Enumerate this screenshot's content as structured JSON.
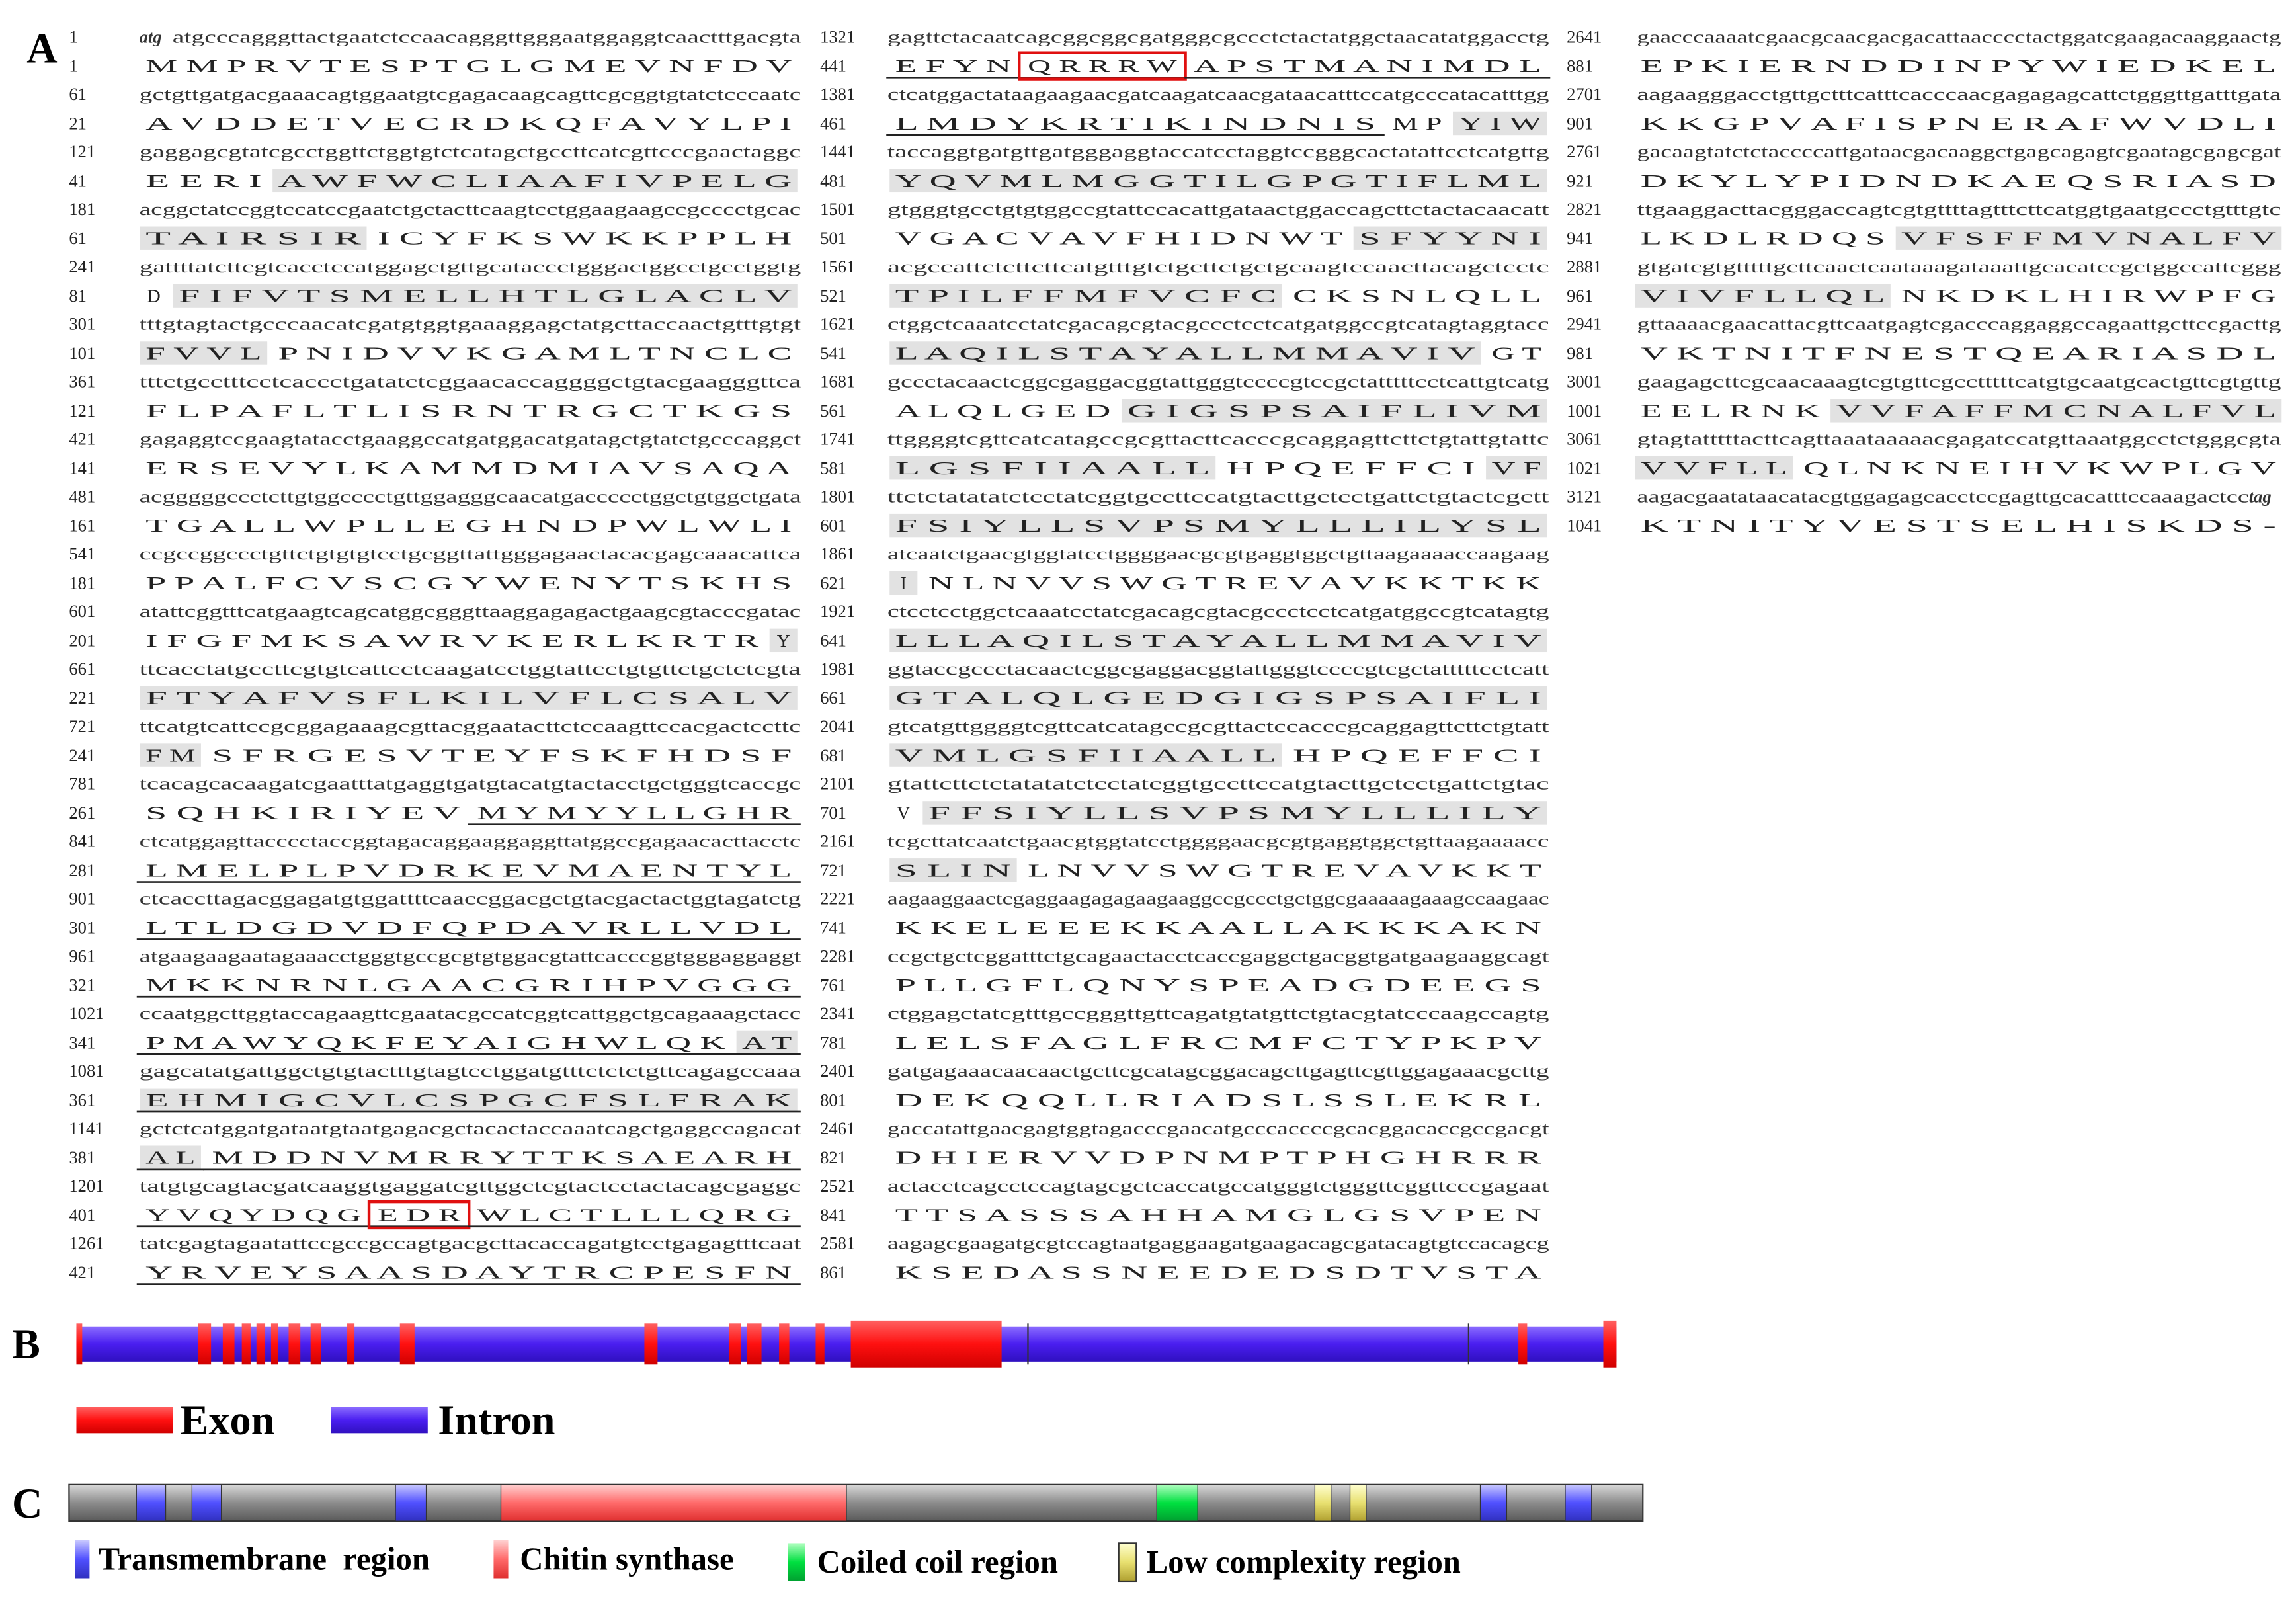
{
  "panel_a": {
    "label": "A",
    "columns": [
      [
        {
          "nt_num": "1",
          "start": "atg",
          "nt": "atgcccagggttactgaatctccaacagggttgggaatggaggtcaactttgacgta",
          "aa_num": "1",
          "aa": [
            "M M P R V T E S P T G L G M E V N F D V"
          ]
        },
        {
          "nt_num": "61",
          "nt": "gctgttgatgacgaaacagtggaatgtcgagacaagcagttcgcggtgtatctcccaatc",
          "aa_num": "21",
          "aa": [
            "A V D D E T V E C R D K Q F A V Y L P I"
          ]
        },
        {
          "nt_num": "121",
          "nt": "gaggagcgtatcgcctggttctggtgtctcatagctgccttcatcgttcccgaactaggc",
          "aa_num": "41",
          "aa": [
            "E E R I",
            {
              "text": "A W F W C L I A A F I V P E L G",
              "style": "shade"
            }
          ]
        },
        {
          "nt_num": "181",
          "nt": "acggctatccggtccatccgaatctgctacttcaagtcctggaagaagccgcccctgcac",
          "aa_num": "61",
          "aa": [
            {
              "text": "T A I R S I R",
              "style": "shade"
            },
            "I C Y F K S W K K P P L H"
          ]
        },
        {
          "nt_num": "241",
          "nt": "gattttatcttcgtcacctccatggagctgttgcataccctgggactggcctgcctggtg",
          "aa_num": "81",
          "aa": [
            "D",
            {
              "text": "F I F V T S M E L L H T L G L A C L V",
              "style": "shade"
            }
          ]
        },
        {
          "nt_num": "301",
          "nt": "tttgtagtactgcccaacatcgatgtggtgaaaggagctatgcttaccaactgtttgtgt",
          "aa_num": "101",
          "aa": [
            {
              "text": "F V V L",
              "style": "shade"
            },
            "P N I D V V K G A M L T N C L C"
          ]
        },
        {
          "nt_num": "361",
          "nt": "tttctgcctttcctcaccctgatatctcggaacaccaggggctgtacgaagggttca",
          "aa_num": "121",
          "aa": [
            "F L P A F L T L I S R N T R G C T K G S"
          ]
        },
        {
          "nt_num": "421",
          "nt": "gagaggtccgaagtatacctgaaggccatgatggacatgatagctgtatctgcccaggct",
          "aa_num": "141",
          "aa": [
            "E R S E V Y L K A M M D M I A V S A Q A"
          ]
        },
        {
          "nt_num": "481",
          "nt": "acgggggccctcttgtggcccctgttggagggcaacatgaccccctggctgtggctgata",
          "aa_num": "161",
          "aa": [
            "T G A L L W P L L E G H N D P W L W L I"
          ]
        },
        {
          "nt_num": "541",
          "nt": "ccgccggccctgttctgtgtgtcctgcggttattgggagaactacacgagcaaacattca",
          "aa_num": "181",
          "aa": [
            "P P A L F C V S C G Y W E N Y T S K H S"
          ]
        },
        {
          "nt_num": "601",
          "nt": "atattcggtttcatgaagtcagcatggcgggttaaggagagactgaagcgtacccgatac",
          "aa_num": "201",
          "aa": [
            "I F G F M K S A W R V K E R L K R T R",
            {
              "text": "Y",
              "style": "shade"
            }
          ]
        },
        {
          "nt_num": "661",
          "nt": "ttcacctatgccttcgtgtcattcctcaagatcctggtattcctgtgttctgctctcgta",
          "aa_num": "221",
          "aa": [
            {
              "text": "F T Y A F V S F L K I L V F L C S A L V",
              "style": "shade"
            }
          ]
        },
        {
          "nt_num": "721",
          "nt": "ttcatgtcattccgcggagaaagcgttacggaatacttctccaagttccacgactccttc",
          "aa_num": "241",
          "aa": [
            {
              "text": "F M",
              "style": "shade"
            },
            "S F R G E S V T E Y F S K F H D S F"
          ]
        },
        {
          "nt_num": "781",
          "nt": "tcacagcacaagatcgaatttatgaggtgatgtacatgtactacctgctgggtcaccgc",
          "aa_num": "261",
          "aa": [
            "S Q H K I R I Y E V",
            {
              "text": "M Y M Y Y L L G H R",
              "style": "under"
            }
          ]
        },
        {
          "nt_num": "841",
          "nt": "ctcatggagttacccctaccggtagacaggaaggaggttatggccgagaacacttacctc",
          "aa_num": "281",
          "aa": [
            {
              "text": "L M E L P L P V D R K E V M A E N T Y L",
              "style": "under"
            }
          ]
        },
        {
          "nt_num": "901",
          "nt": "ctcaccttagacggagatgtggattttcaaccggacgctgtacgactactggtagatctg",
          "aa_num": "301",
          "aa": [
            {
              "text": "L T L D G D V D F Q P D A V R L L V D L",
              "style": "under"
            }
          ]
        },
        {
          "nt_num": "961",
          "nt": "atgaagaagaatagaaacctgggtgccgcgtgtggacgtattcacccggtgggaggaggt",
          "aa_num": "321",
          "aa": [
            {
              "text": "M K K N R N L G A A C G R I H P V G G G",
              "style": "under"
            }
          ]
        },
        {
          "nt_num": "1021",
          "nt": "ccaatggcttggtaccagaagttcgaatacgccatcggtcattggctgcagaaagctacc",
          "aa_num": "341",
          "aa": [
            {
              "text": "P M A W Y Q K F E Y A I G H W L Q K",
              "style": "under"
            },
            {
              "text": "A T",
              "style": "under shade"
            }
          ]
        },
        {
          "nt_num": "1081",
          "nt": "gagcatatgattggctgtgtactttgtagtcctggatgtttctctctgttcagagccaaa",
          "aa_num": "361",
          "aa": [
            {
              "text": "E H M I G C V L C S P G C F S L F R A K",
              "style": "under shade"
            }
          ]
        },
        {
          "nt_num": "1141",
          "nt": "gctctcatggatgataatgtaatgagacgctacactaccaaatcagctgaggccagacat",
          "aa_num": "381",
          "aa": [
            {
              "text": "A L",
              "style": "under shade"
            },
            {
              "text": "M D D N V M R R Y T T K S A E A R H",
              "style": "under"
            }
          ]
        },
        {
          "nt_num": "1201",
          "nt": "tatgtgcagtacgatcaaggtgaggatcgttggctcgtactcctactacagcgaggc",
          "aa_num": "401",
          "aa": [
            {
              "text": "Y V Q Y D Q G",
              "style": "under"
            },
            {
              "text": "E D R",
              "style": "under box"
            },
            {
              "text": "W L C T L L L Q R G",
              "style": "under"
            }
          ]
        },
        {
          "nt_num": "1261",
          "nt": "tatcgagtagaatattccgccgccagtgacgcttacaccagatgtcctgagagtttcaat",
          "aa_num": "421",
          "aa": [
            {
              "text": "Y R V E Y S A A S D A Y T R C P E S F N",
              "style": "under"
            }
          ]
        }
      ],
      [
        {
          "nt_num": "1321",
          "nt": "gagttctacaatcagcggcggcgatgggcgccctctactatggctaacatatggacctg",
          "aa_num": "441",
          "aa": [
            {
              "text": "E F Y N",
              "style": "under"
            },
            {
              "text": "Q R R R W",
              "style": "under box"
            },
            {
              "text": "A P S T M A N I M D L",
              "style": "under"
            }
          ]
        },
        {
          "nt_num": "1381",
          "nt": "ctcatggactataagaagaacgatcaagatcaacgataacatttccatgcccatacatttgg",
          "aa_num": "461",
          "aa": [
            {
              "text": "L M D Y K R T I K I N D N I S",
              "style": "under"
            },
            "M P",
            {
              "text": "Y I W",
              "style": "shade"
            }
          ]
        },
        {
          "nt_num": "1441",
          "nt": "taccaggtgatgttgatgggaggtaccatcctaggtccgggcactatattcctcatgttg",
          "aa_num": "481",
          "aa": [
            {
              "text": "Y Q V M L M G G T I L G P G T I F L M L",
              "style": "shade"
            }
          ]
        },
        {
          "nt_num": "1501",
          "nt": "gtgggtgcctgtgtggccgtattccacattgataactggaccagcttctactacaacatt",
          "aa_num": "501",
          "aa": [
            "V G A C V A V F H I D N W T",
            {
              "text": "S F Y Y N I",
              "style": "shade"
            }
          ]
        },
        {
          "nt_num": "1561",
          "nt": "acgccattctcttcttcatgtttgtctgcttctgctgcaagtccaacttacagctcctc",
          "aa_num": "521",
          "aa": [
            {
              "text": "T P I L F F M F V C F C",
              "style": "shade"
            },
            "C K S N L Q L L"
          ]
        },
        {
          "nt_num": "1621",
          "nt": "ctggctcaaatcctatcgacagcgtacgccctcctcatgatggccgtcatagtaggtacc",
          "aa_num": "541",
          "aa": [
            {
              "text": "L A Q I L S T A Y A L L M M A V I V",
              "style": "shade"
            },
            "G T"
          ]
        },
        {
          "nt_num": "1681",
          "nt": "gccctacaactcggcgaggacggtattgggtccccgtccgctatttttcctcattgtcatg",
          "aa_num": "561",
          "aa": [
            "A L Q L G E D",
            {
              "text": "G I G S P S A I F L I V M",
              "style": "shade"
            }
          ]
        },
        {
          "nt_num": "1741",
          "nt": "ttggggtcgttcatcatagccgcgttacttcacccgcaggagttcttctgtattgtattc",
          "aa_num": "581",
          "aa": [
            {
              "text": "L G S F I I A A L L",
              "style": "shade"
            },
            "H P Q E F F C I",
            {
              "text": "V F",
              "style": "shade"
            }
          ]
        },
        {
          "nt_num": "1801",
          "nt": "ttctctatatatctcctatcggtgccttccatgtacttgctcctgattctgtactcgctt",
          "aa_num": "601",
          "aa": [
            {
              "text": "F S I Y L L S V P S M Y L L L I L Y S L",
              "style": "shade"
            }
          ]
        },
        {
          "nt_num": "1861",
          "nt": "atcaatctgaacgtggtatcctggggaacgcgtgaggtggctgttaagaaaaccaagaag",
          "aa_num": "621",
          "aa": [
            {
              "text": "I",
              "style": "shade"
            },
            "N L N V V S W G T R E V A V K K T K K"
          ]
        },
        {
          "nt_num": "1921",
          "nt": "ctcctcctggctcaaatcctatcgacagcgtacgccctcctcatgatggccgtcatagtg",
          "aa_num": "641",
          "aa": [
            {
              "text": "L L L A Q I L S T A Y A L L M M A V I V",
              "style": "shade"
            }
          ]
        },
        {
          "nt_num": "1981",
          "nt": "ggtaccgccctacaactcggcgaggacggtattgggtccccgtcgctatttttcctcatt",
          "aa_num": "661",
          "aa": [
            {
              "text": "G T A L Q L G E D G I G S P S A I F L I",
              "style": "shade"
            }
          ]
        },
        {
          "nt_num": "2041",
          "nt": "gtcatgttggggtcgttcatcatagccgcgttactccacccgcaggagttcttctgtatt",
          "aa_num": "681",
          "aa": [
            {
              "text": "V M L G S F I I A A L L",
              "style": "shade"
            },
            "H P Q E F F C I"
          ]
        },
        {
          "nt_num": "2101",
          "nt": "gtattcttctctatatatctcctatcggtgccttccatgtacttgctcctgattctgtac",
          "aa_num": "701",
          "aa": [
            "V",
            {
              "text": "F F S I Y L L S V P S M Y L L L I L Y",
              "style": "shade"
            }
          ]
        },
        {
          "nt_num": "2161",
          "nt": "tcgcttatcaatctgaacgtggtatcctggggaacgcgtgaggtggctgttaagaaaacc",
          "aa_num": "721",
          "aa": [
            {
              "text": "S L I N",
              "style": "shade"
            },
            "L N V V S W G T R E V A V K K T"
          ]
        },
        {
          "nt_num": "2221",
          "nt": "aagaaggaactcgaggaagagagaagaaggccgccctgctggcgaaaaagaaagccaagaac",
          "aa_num": "741",
          "aa": [
            "K K E L E E E K K A A L L A K K K A K N"
          ]
        },
        {
          "nt_num": "2281",
          "nt": "ccgctgctcggatttctgcagaactacctcaccgaggctgacggtgatgaagaaggcagt",
          "aa_num": "761",
          "aa": [
            "P L L G F L Q N Y S P E A D G D E E G S"
          ]
        },
        {
          "nt_num": "2341",
          "nt": "ctggagctatcgtttgccgggttgttcagatgtatgttctgtacgtatcccaagccagtg",
          "aa_num": "781",
          "aa": [
            "L E L S F A G L F R C M F C T Y P K P V"
          ]
        },
        {
          "nt_num": "2401",
          "nt": "gatgagaaacaacaactgcttcgcatagcggacagcttgagttcgttggagaaacgcttg",
          "aa_num": "801",
          "aa": [
            "D E K Q Q L L R I A D S L S S L E K R L"
          ]
        },
        {
          "nt_num": "2461",
          "nt": "gaccatattgaacgagtggtagacccgaacatgcccaccccgcacggacaccgccgacgt",
          "aa_num": "821",
          "aa": [
            "D H I E R V V D P N M P T P H G H R R R"
          ]
        },
        {
          "nt_num": "2521",
          "nt": "actacctcagcctccagtagcgctcaccatgccatgggtctgggttcggttcccgagaat",
          "aa_num": "841",
          "aa": [
            "T T S A S S S A H H A M G L G S V P E N"
          ]
        },
        {
          "nt_num": "2581",
          "nt": "aagagcgaagatgcgtccagtaatgaggaagatgaagacagcgatacagtgtccacagcg",
          "aa_num": "861",
          "aa": [
            "K S E D A S S N E E D E D S D T V S T A"
          ]
        }
      ],
      [
        {
          "nt_num": "2641",
          "nt": "gaacccaaaatcgaacgcaacgacgacattaacccctactggatcgaagacaaggaactg",
          "aa_num": "881",
          "aa": [
            "E P K I E R N D D I N P Y W I E D K E L"
          ]
        },
        {
          "nt_num": "2701",
          "nt": "aagaagggacctgttgctttcatttcacccaacgagagagcattctgggttgatttgata",
          "aa_num": "901",
          "aa": [
            "K K G P V A F I S P N E R A F W V D L I"
          ]
        },
        {
          "nt_num": "2761",
          "nt": "gacaagtatctctaccccattgataacgacaaggctgagcagagtcgaatagcgagcgat",
          "aa_num": "921",
          "aa": [
            "D K Y L Y P I D N D K A E Q S R I A S D"
          ]
        },
        {
          "nt_num": "2821",
          "nt": "ttgaaggacttacgggaccagtcgtgttttagtttcttcatggtgaatgccctgtttgtc",
          "aa_num": "941",
          "aa": [
            "L K D L R D Q S",
            {
              "text": "V F S F F M V N A L F V",
              "style": "shade"
            }
          ]
        },
        {
          "nt_num": "2881",
          "nt": "gtgatcgtgtttttgcttcaactcaataaagataaattgcacatccgctggccattcggg",
          "aa_num": "961",
          "aa": [
            {
              "text": "V I V F L L Q L",
              "style": "shade"
            },
            "N K D K L H I R W P F G"
          ]
        },
        {
          "nt_num": "2941",
          "nt": "gttaaaacgaacattacgttcaatgagtcgacccaggaggccagaattgcttccgacttg",
          "aa_num": "981",
          "aa": [
            "V K T N I T F N E S T Q E A R I A S D L"
          ]
        },
        {
          "nt_num": "3001",
          "nt": "gaagagcttcgcaacaaagtcgtgttcgcctttttcatgtgcaatgcactgttcgtgttg",
          "aa_num": "1001",
          "aa": [
            "E E L R N K",
            {
              "text": "V V F A F F M C N A L F V L",
              "style": "shade"
            }
          ]
        },
        {
          "nt_num": "3061",
          "nt": "gtagtatttttacttcagttaaataaaaacgagatccatgttaaatggcctctgggcgta",
          "aa_num": "1021",
          "aa": [
            {
              "text": "V V F L L",
              "style": "shade"
            },
            "Q L N K N E I H V K W P L G V"
          ]
        },
        {
          "nt_num": "3121",
          "nt": "aagacgaatataacatacgtggagagcacctccgagttgcacatttccaaagactcc",
          "stop": "tag",
          "aa_num": "1041",
          "aa": [
            "K T N I T Y V E S T S E L H I S K D S -"
          ]
        }
      ]
    ]
  },
  "panel_b": {
    "label": "B",
    "legend": [
      "Exon",
      "Intron"
    ]
  },
  "panel_c": {
    "label": "C",
    "legend": [
      "Transmembrane  region",
      "Chitin synthase",
      "Coiled coil region",
      "Low complexity region"
    ]
  }
}
